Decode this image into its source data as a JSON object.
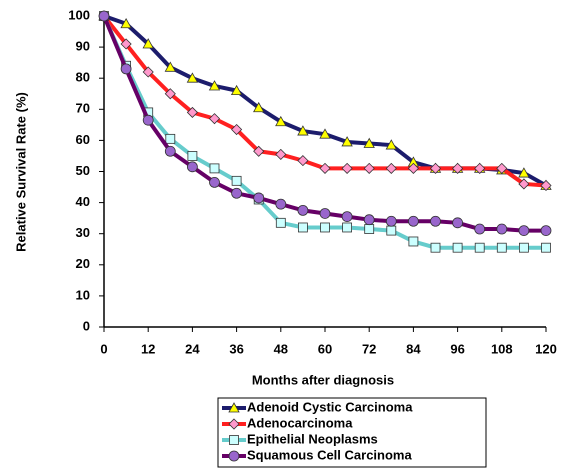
{
  "chart_data": {
    "type": "line",
    "x_label": "Months after diagnosis",
    "y_label": "Relative Survival Rate (%)",
    "x": [
      0,
      6,
      12,
      18,
      24,
      30,
      36,
      42,
      48,
      54,
      60,
      66,
      72,
      78,
      84,
      90,
      96,
      102,
      108,
      114,
      120
    ],
    "xlim": [
      0,
      120
    ],
    "xticks": [
      0,
      12,
      24,
      36,
      48,
      60,
      72,
      84,
      96,
      108,
      120
    ],
    "ylim": [
      0,
      100
    ],
    "yticks": [
      0,
      10,
      20,
      30,
      40,
      50,
      60,
      70,
      80,
      90,
      100
    ],
    "grid": false,
    "legend": "bottom",
    "series": [
      {
        "name": "Adenoid Cystic Carcinoma",
        "color": "#1c1c6c",
        "marker": "triangle",
        "marker_color": "#ffff00",
        "values": [
          100,
          97.5,
          91,
          83.5,
          80,
          77.5,
          76,
          70.5,
          66,
          63,
          62,
          59.5,
          59,
          58.5,
          53,
          51,
          51,
          51,
          50.5,
          49.5,
          45.5
        ]
      },
      {
        "name": "Adenocarcinoma",
        "color": "#ff2020",
        "marker": "diamond",
        "marker_color": "#ff99cc",
        "values": [
          100,
          91,
          82,
          75,
          69,
          67,
          63.5,
          56.5,
          55.5,
          53.5,
          51,
          51,
          51,
          51,
          51,
          51,
          51,
          51,
          51,
          46,
          45.5
        ]
      },
      {
        "name": "Epithelial Neoplasms",
        "color": "#66cccc",
        "marker": "square",
        "marker_color": "#ccffff",
        "values": [
          100,
          84,
          69,
          60.5,
          55,
          51,
          47,
          41,
          33.5,
          32,
          32,
          32,
          31.5,
          31,
          27.5,
          25.5,
          25.5,
          25.5,
          25.5,
          25.5,
          25.5
        ]
      },
      {
        "name": "Squamous Cell Carcinoma",
        "color": "#660066",
        "marker": "circle",
        "marker_color": "#9966cc",
        "values": [
          100,
          83,
          66.5,
          56.5,
          51.5,
          46.5,
          43,
          41.5,
          39.5,
          37.5,
          36.5,
          35.5,
          34.5,
          34,
          34,
          34,
          33.5,
          31.5,
          31.5,
          31,
          31
        ]
      }
    ]
  }
}
